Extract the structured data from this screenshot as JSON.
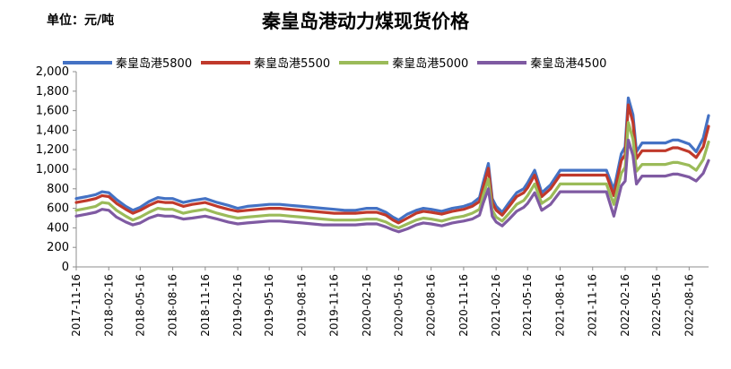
{
  "unit": "单位：元/吨",
  "title": "秦皇岛港动力煤现货价格",
  "chart_data": {
    "type": "line",
    "title": "秦皇岛港动力煤现货价格",
    "ylabel": "单位：元/吨",
    "ylim": [
      0,
      2000
    ],
    "ytick_labels": [
      "0",
      "200",
      "400",
      "600",
      "800",
      "1,000",
      "1,200",
      "1,400",
      "1,600",
      "1,800",
      "2,000"
    ],
    "ytick_values": [
      0,
      200,
      400,
      600,
      800,
      1000,
      1200,
      1400,
      1600,
      1800,
      2000
    ],
    "x_start": "2017-11-16",
    "x_end": "2022-10-10",
    "xtick_labels": [
      "2017-11-16",
      "2018-02-16",
      "2018-05-16",
      "2018-08-16",
      "2018-11-16",
      "2019-02-16",
      "2019-05-16",
      "2019-08-16",
      "2019-11-16",
      "2020-02-16",
      "2020-05-16",
      "2020-08-16",
      "2020-11-16",
      "2021-02-16",
      "2021-05-16",
      "2021-08-16",
      "2021-11-16",
      "2022-02-16",
      "2022-05-16",
      "2022-08-16"
    ],
    "grid": false,
    "legend_position": "top",
    "x": [
      "2017-11-16",
      "2017-12-16",
      "2018-01-10",
      "2018-01-28",
      "2018-02-16",
      "2018-03-10",
      "2018-04-05",
      "2018-04-25",
      "2018-05-16",
      "2018-06-10",
      "2018-07-05",
      "2018-07-25",
      "2018-08-16",
      "2018-09-15",
      "2018-10-10",
      "2018-11-16",
      "2018-12-20",
      "2019-01-20",
      "2019-02-16",
      "2019-03-15",
      "2019-04-15",
      "2019-05-16",
      "2019-06-15",
      "2019-07-15",
      "2019-08-16",
      "2019-09-15",
      "2019-10-15",
      "2019-11-16",
      "2019-12-15",
      "2020-01-15",
      "2020-02-16",
      "2020-03-15",
      "2020-04-10",
      "2020-04-30",
      "2020-05-16",
      "2020-06-10",
      "2020-07-05",
      "2020-07-25",
      "2020-08-16",
      "2020-09-15",
      "2020-10-15",
      "2020-11-16",
      "2020-12-10",
      "2020-12-31",
      "2021-01-10",
      "2021-01-25",
      "2021-02-05",
      "2021-02-16",
      "2021-03-05",
      "2021-03-25",
      "2021-04-15",
      "2021-05-05",
      "2021-05-16",
      "2021-06-05",
      "2021-06-25",
      "2021-07-20",
      "2021-08-16",
      "2021-09-16",
      "2021-10-15",
      "2021-11-16",
      "2021-12-15",
      "2021-12-25",
      "2022-01-15",
      "2022-02-05",
      "2022-02-16",
      "2022-02-25",
      "2022-03-10",
      "2022-03-20",
      "2022-04-05",
      "2022-04-20",
      "2022-05-16",
      "2022-06-10",
      "2022-07-01",
      "2022-07-15",
      "2022-08-16",
      "2022-09-05",
      "2022-09-25",
      "2022-10-10"
    ],
    "series": [
      {
        "name": "秦皇岛港5800",
        "color": "#4472C4",
        "values": [
          700,
          720,
          740,
          770,
          760,
          690,
          620,
          580,
          610,
          670,
          710,
          700,
          700,
          660,
          680,
          700,
          660,
          630,
          600,
          620,
          630,
          640,
          640,
          630,
          620,
          610,
          600,
          590,
          580,
          580,
          600,
          600,
          560,
          510,
          480,
          540,
          580,
          600,
          590,
          570,
          600,
          620,
          650,
          710,
          860,
          1060,
          700,
          620,
          560,
          660,
          760,
          800,
          860,
          990,
          760,
          840,
          990,
          990,
          990,
          990,
          990,
          990,
          790,
          1160,
          1230,
          1730,
          1560,
          1180,
          1270,
          1270,
          1270,
          1270,
          1300,
          1300,
          1260,
          1180,
          1320,
          1550
        ]
      },
      {
        "name": "秦皇岛港5500",
        "color": "#C0392B",
        "values": [
          660,
          680,
          700,
          730,
          720,
          650,
          590,
          550,
          580,
          630,
          670,
          660,
          660,
          620,
          640,
          660,
          620,
          590,
          570,
          580,
          590,
          600,
          600,
          590,
          580,
          570,
          560,
          550,
          550,
          550,
          560,
          560,
          530,
          480,
          450,
          500,
          550,
          570,
          560,
          540,
          570,
          590,
          620,
          670,
          810,
          1010,
          660,
          580,
          530,
          620,
          720,
          760,
          810,
          940,
          720,
          800,
          940,
          940,
          940,
          940,
          940,
          940,
          730,
          1090,
          1150,
          1660,
          1480,
          1110,
          1190,
          1190,
          1190,
          1190,
          1220,
          1220,
          1180,
          1120,
          1230,
          1440
        ]
      },
      {
        "name": "秦皇岛港5000",
        "color": "#9BBB59",
        "values": [
          580,
          600,
          620,
          660,
          650,
          580,
          520,
          480,
          510,
          560,
          600,
          590,
          590,
          550,
          570,
          590,
          550,
          520,
          500,
          510,
          520,
          530,
          530,
          520,
          510,
          500,
          490,
          480,
          480,
          480,
          490,
          490,
          460,
          420,
          400,
          440,
          480,
          500,
          490,
          470,
          500,
          520,
          550,
          590,
          730,
          900,
          580,
          510,
          470,
          550,
          640,
          680,
          730,
          850,
          650,
          710,
          850,
          850,
          850,
          850,
          850,
          850,
          640,
          960,
          1020,
          1480,
          1310,
          980,
          1050,
          1050,
          1050,
          1050,
          1070,
          1070,
          1040,
          990,
          1100,
          1280
        ]
      },
      {
        "name": "秦皇岛港4500",
        "color": "#7F5AA2",
        "values": [
          520,
          540,
          560,
          590,
          580,
          510,
          460,
          430,
          450,
          500,
          530,
          520,
          520,
          490,
          500,
          520,
          490,
          460,
          440,
          450,
          460,
          470,
          470,
          460,
          450,
          440,
          430,
          430,
          430,
          430,
          440,
          440,
          410,
          380,
          360,
          390,
          430,
          450,
          440,
          420,
          450,
          470,
          490,
          530,
          650,
          800,
          520,
          460,
          420,
          490,
          570,
          610,
          650,
          760,
          580,
          640,
          770,
          770,
          770,
          770,
          770,
          770,
          520,
          830,
          880,
          1300,
          1140,
          850,
          930,
          930,
          930,
          930,
          950,
          950,
          920,
          880,
          960,
          1090
        ]
      }
    ]
  }
}
